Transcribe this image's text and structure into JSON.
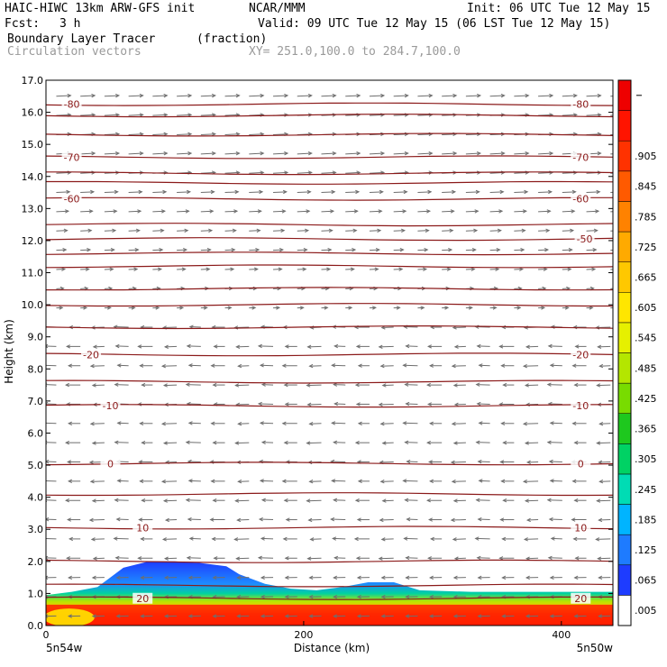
{
  "header": {
    "model": "HAIC-HIWC 13km ARW-GFS init",
    "org": "NCAR/MMM",
    "init": "Init: 06 UTC Tue 12 May 15",
    "fcst_label": "Fcst:",
    "fcst_value": "3 h",
    "valid": "Valid: 09 UTC Tue 12 May 15 (06 LST Tue 12 May 15)",
    "field": "Boundary Layer Tracer",
    "field_units": "(fraction)",
    "vectors": "Circulation vectors",
    "xy": "XY= 251.0,100.0 to 284.7,100.0"
  },
  "chart_data": {
    "type": "heatmap",
    "ylabel": "Height (km)",
    "xlabel": "Distance (km)",
    "ylim": [
      0,
      17
    ],
    "xlim": [
      0,
      440
    ],
    "y_ticks": [
      "0.0",
      "1.0",
      "2.0",
      "3.0",
      "4.0",
      "5.0",
      "6.0",
      "7.0",
      "8.0",
      "9.0",
      "10.0",
      "11.0",
      "12.0",
      "13.0",
      "14.0",
      "15.0",
      "16.0",
      "17.0"
    ],
    "x_ticks": [
      {
        "value": 0,
        "label": "0"
      },
      {
        "value": 200,
        "label": "200"
      },
      {
        "value": 400,
        "label": "400"
      }
    ],
    "x_end_labels": [
      "5n54w",
      "5n50w"
    ],
    "colorbar": {
      "labels": [
        ".005",
        ".065",
        ".125",
        ".185",
        ".245",
        ".305",
        ".365",
        ".425",
        ".485",
        ".545",
        ".605",
        ".665",
        ".725",
        ".785",
        ".845",
        ".905",
        "",
        ""
      ],
      "colors": [
        "#ffffff",
        "#1e3cff",
        "#1e7bff",
        "#00b4ff",
        "#00dcb4",
        "#00d264",
        "#1ec81e",
        "#78dc00",
        "#b4e600",
        "#e6f000",
        "#ffe600",
        "#ffc800",
        "#ffaa00",
        "#ff8200",
        "#ff5a00",
        "#ff3200",
        "#ff1400",
        "#ee0000"
      ]
    },
    "isotherms": [
      {
        "label": "-80",
        "height_km": 16.25,
        "label_left_x": 20,
        "label_right_x": 415
      },
      {
        "label": "-70",
        "height_km": 14.6,
        "label_left_x": 20,
        "label_right_x": 415
      },
      {
        "label": "-60",
        "height_km": 13.3,
        "label_left_x": 20,
        "label_right_x": 415
      },
      {
        "label": "-50",
        "height_km": 12.05,
        "label_left_x": null,
        "label_right_x": 418
      },
      {
        "label": "-20",
        "height_km": 8.45,
        "label_left_x": 35,
        "label_right_x": 415
      },
      {
        "label": "-10",
        "height_km": 6.85,
        "label_left_x": 50,
        "label_right_x": 415
      },
      {
        "label": "0",
        "height_km": 5.05,
        "label_left_x": 50,
        "label_right_x": 415
      },
      {
        "label": "10",
        "height_km": 3.05,
        "label_left_x": 75,
        "label_right_x": 415
      },
      {
        "label": "20",
        "height_km": 0.85,
        "label_left_x": 75,
        "label_right_x": 415
      }
    ],
    "unlabeled_isotherm_heights_km": [
      15.9,
      15.3,
      14.1,
      13.8,
      12.5,
      11.6,
      11.2,
      10.5,
      10.0,
      9.3,
      7.6,
      4.1,
      2.0,
      1.25
    ],
    "tracer_layer": {
      "top_km_by_distance": [
        [
          0,
          0.95
        ],
        [
          20,
          1.05
        ],
        [
          40,
          1.2
        ],
        [
          60,
          1.8
        ],
        [
          80,
          2.0
        ],
        [
          100,
          2.0
        ],
        [
          120,
          1.95
        ],
        [
          140,
          1.85
        ],
        [
          150,
          1.6
        ],
        [
          170,
          1.3
        ],
        [
          190,
          1.15
        ],
        [
          210,
          1.1
        ],
        [
          230,
          1.2
        ],
        [
          250,
          1.35
        ],
        [
          270,
          1.35
        ],
        [
          290,
          1.1
        ],
        [
          330,
          1.05
        ],
        [
          380,
          1.05
        ],
        [
          440,
          1.05
        ]
      ],
      "core_top_km": 0.65,
      "note_values": {
        "max": 0.965,
        "min": 0.005
      }
    },
    "vectors": {
      "upper_flow_km": [
        9.5,
        16.8
      ],
      "upper_direction": "west-to-east",
      "lower_direction": "east-to-west"
    }
  }
}
